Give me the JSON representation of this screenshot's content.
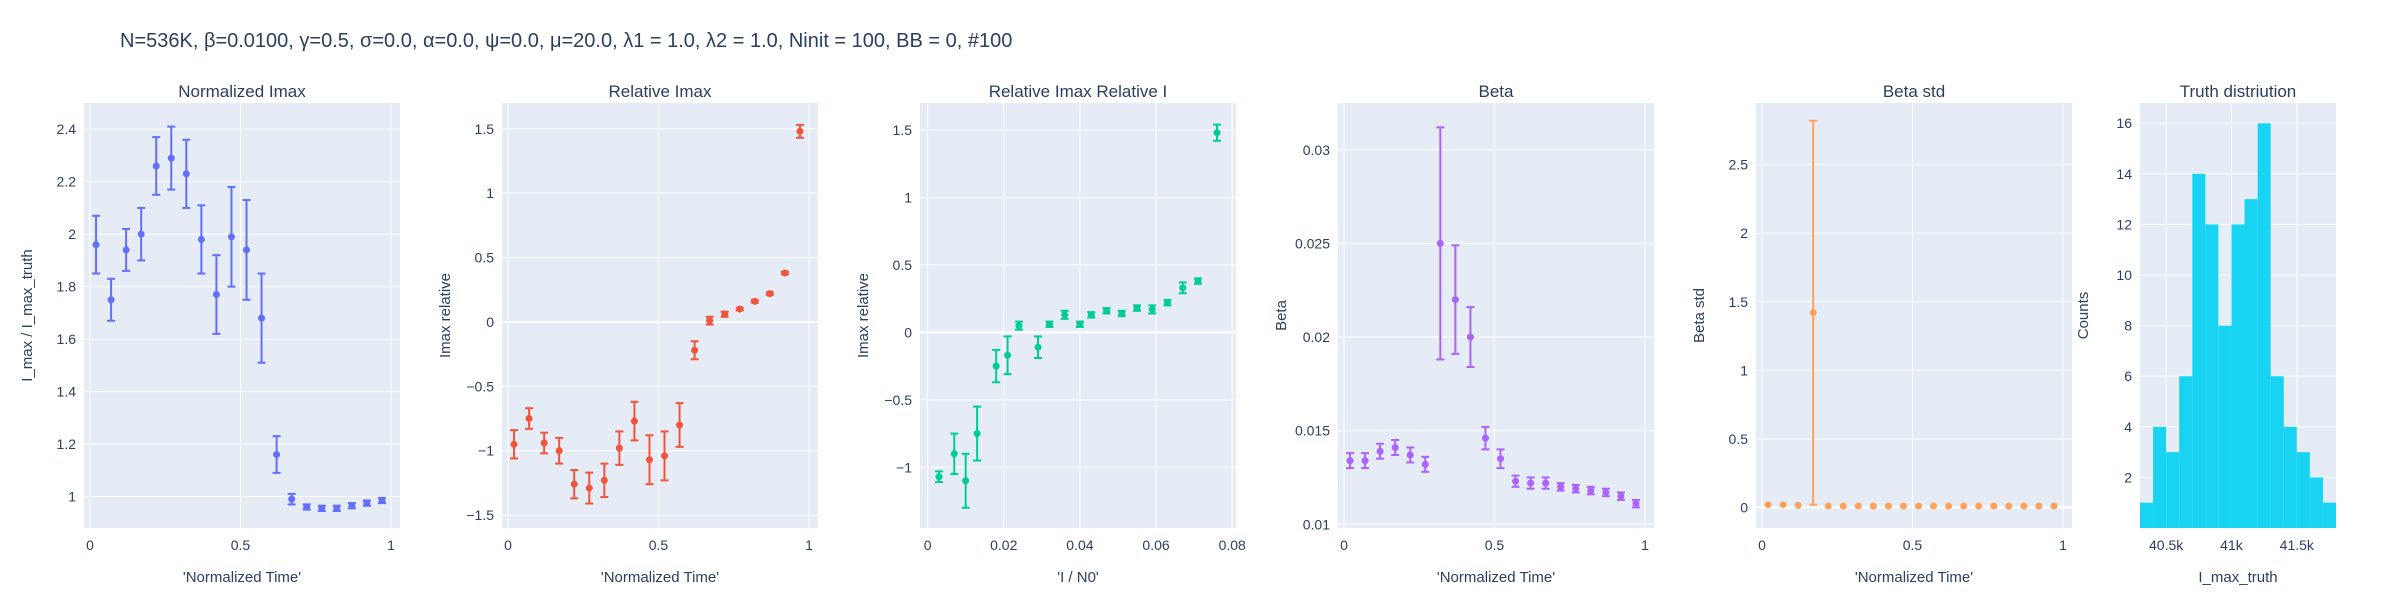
{
  "main_title": "N=536K, β=0.0100, γ=0.5, σ=0.0,  α=0.0, ψ=0.0, μ=20.0, λ1 = 1.0, λ2 = 1.0, Ninit = 100, BB = 0, #100",
  "chart_data": [
    {
      "type": "scatter",
      "title": "Normalized Imax",
      "xlabel": "'Normalized Time'",
      "ylabel": "I_max / I_max_truth",
      "color": "#636efa",
      "xlim": [
        -0.02,
        1.03
      ],
      "ylim": [
        0.88,
        2.5
      ],
      "xticks": [
        0,
        0.5,
        1
      ],
      "xtick_labels": [
        "0",
        "0.5",
        "1"
      ],
      "yticks": [
        1,
        1.2,
        1.4,
        1.6,
        1.8,
        2,
        2.2,
        2.4
      ],
      "ytick_labels": [
        "1",
        "1.2",
        "1.4",
        "1.6",
        "1.8",
        "2",
        "2.2",
        "2.4"
      ],
      "points": [
        {
          "x": 0.02,
          "y": 1.96,
          "err": 0.11
        },
        {
          "x": 0.07,
          "y": 1.75,
          "err": 0.08
        },
        {
          "x": 0.12,
          "y": 1.94,
          "err": 0.08
        },
        {
          "x": 0.17,
          "y": 2.0,
          "err": 0.1
        },
        {
          "x": 0.22,
          "y": 2.26,
          "err": 0.11
        },
        {
          "x": 0.27,
          "y": 2.29,
          "err": 0.12
        },
        {
          "x": 0.32,
          "y": 2.23,
          "err": 0.13
        },
        {
          "x": 0.37,
          "y": 1.98,
          "err": 0.13
        },
        {
          "x": 0.42,
          "y": 1.77,
          "err": 0.15
        },
        {
          "x": 0.47,
          "y": 1.99,
          "err": 0.19
        },
        {
          "x": 0.52,
          "y": 1.94,
          "err": 0.19
        },
        {
          "x": 0.57,
          "y": 1.68,
          "err": 0.17
        },
        {
          "x": 0.62,
          "y": 1.16,
          "err": 0.07
        },
        {
          "x": 0.67,
          "y": 0.99,
          "err": 0.02
        },
        {
          "x": 0.72,
          "y": 0.96,
          "err": 0.01
        },
        {
          "x": 0.77,
          "y": 0.955,
          "err": 0.01
        },
        {
          "x": 0.82,
          "y": 0.955,
          "err": 0.01
        },
        {
          "x": 0.87,
          "y": 0.965,
          "err": 0.01
        },
        {
          "x": 0.92,
          "y": 0.975,
          "err": 0.01
        },
        {
          "x": 0.97,
          "y": 0.985,
          "err": 0.01
        }
      ]
    },
    {
      "type": "scatter",
      "title": "Relative Imax",
      "xlabel": "'Normalized Time'",
      "ylabel": "Imax relative",
      "color": "#ef553b",
      "xlim": [
        -0.02,
        1.03
      ],
      "ylim": [
        -1.6,
        1.7
      ],
      "xticks": [
        0,
        0.5,
        1
      ],
      "xtick_labels": [
        "0",
        "0.5",
        "1"
      ],
      "yticks": [
        -1.5,
        -1,
        -0.5,
        0,
        0.5,
        1,
        1.5
      ],
      "ytick_labels": [
        "−1.5",
        "−1",
        "−0.5",
        "0",
        "0.5",
        "1",
        "1.5"
      ],
      "points": [
        {
          "x": 0.02,
          "y": -0.95,
          "err": 0.11
        },
        {
          "x": 0.07,
          "y": -0.75,
          "err": 0.08
        },
        {
          "x": 0.12,
          "y": -0.94,
          "err": 0.08
        },
        {
          "x": 0.17,
          "y": -1.0,
          "err": 0.1
        },
        {
          "x": 0.22,
          "y": -1.26,
          "err": 0.11
        },
        {
          "x": 0.27,
          "y": -1.29,
          "err": 0.12
        },
        {
          "x": 0.32,
          "y": -1.23,
          "err": 0.13
        },
        {
          "x": 0.37,
          "y": -0.98,
          "err": 0.13
        },
        {
          "x": 0.42,
          "y": -0.77,
          "err": 0.15
        },
        {
          "x": 0.47,
          "y": -1.07,
          "err": 0.19
        },
        {
          "x": 0.52,
          "y": -1.04,
          "err": 0.19
        },
        {
          "x": 0.57,
          "y": -0.8,
          "err": 0.17
        },
        {
          "x": 0.62,
          "y": -0.22,
          "err": 0.07
        },
        {
          "x": 0.67,
          "y": 0.01,
          "err": 0.03
        },
        {
          "x": 0.72,
          "y": 0.06,
          "err": 0.02
        },
        {
          "x": 0.77,
          "y": 0.1,
          "err": 0.01
        },
        {
          "x": 0.82,
          "y": 0.16,
          "err": 0.01
        },
        {
          "x": 0.87,
          "y": 0.22,
          "err": 0.01
        },
        {
          "x": 0.92,
          "y": 0.38,
          "err": 0.01
        },
        {
          "x": 0.97,
          "y": 1.48,
          "err": 0.05
        }
      ]
    },
    {
      "type": "scatter",
      "title": "Relative Imax Relative I",
      "xlabel": "'I / N0'",
      "ylabel": "Imax relative",
      "color": "#00cc96",
      "xlim": [
        -0.002,
        0.081
      ],
      "ylim": [
        -1.45,
        1.7
      ],
      "xticks": [
        0,
        0.02,
        0.04,
        0.06,
        0.08
      ],
      "xtick_labels": [
        "0",
        "0.02",
        "0.04",
        "0.06",
        "0.08"
      ],
      "yticks": [
        -1,
        -0.5,
        0,
        0.5,
        1,
        1.5
      ],
      "ytick_labels": [
        "−1",
        "−0.5",
        "0",
        "0.5",
        "1",
        "1.5"
      ],
      "points": [
        {
          "x": 0.003,
          "y": -1.07,
          "err": 0.04
        },
        {
          "x": 0.007,
          "y": -0.9,
          "err": 0.15
        },
        {
          "x": 0.01,
          "y": -1.1,
          "err": 0.2
        },
        {
          "x": 0.013,
          "y": -0.75,
          "err": 0.2
        },
        {
          "x": 0.018,
          "y": -0.25,
          "err": 0.12
        },
        {
          "x": 0.021,
          "y": -0.17,
          "err": 0.14
        },
        {
          "x": 0.024,
          "y": 0.05,
          "err": 0.03
        },
        {
          "x": 0.029,
          "y": -0.11,
          "err": 0.08
        },
        {
          "x": 0.032,
          "y": 0.06,
          "err": 0.02
        },
        {
          "x": 0.036,
          "y": 0.13,
          "err": 0.03
        },
        {
          "x": 0.04,
          "y": 0.06,
          "err": 0.02
        },
        {
          "x": 0.043,
          "y": 0.13,
          "err": 0.02
        },
        {
          "x": 0.047,
          "y": 0.16,
          "err": 0.02
        },
        {
          "x": 0.051,
          "y": 0.14,
          "err": 0.02
        },
        {
          "x": 0.055,
          "y": 0.18,
          "err": 0.02
        },
        {
          "x": 0.059,
          "y": 0.17,
          "err": 0.03
        },
        {
          "x": 0.063,
          "y": 0.22,
          "err": 0.02
        },
        {
          "x": 0.067,
          "y": 0.33,
          "err": 0.04
        },
        {
          "x": 0.071,
          "y": 0.38,
          "err": 0.02
        },
        {
          "x": 0.076,
          "y": 1.48,
          "err": 0.06
        }
      ]
    },
    {
      "type": "scatter",
      "title": "Beta",
      "xlabel": "'Normalized Time'",
      "ylabel": "Beta",
      "color": "#ab63fa",
      "xlim": [
        -0.02,
        1.03
      ],
      "ylim": [
        0.0098,
        0.0325
      ],
      "xticks": [
        0,
        0.5,
        1
      ],
      "xtick_labels": [
        "0",
        "0.5",
        "1"
      ],
      "yticks": [
        0.01,
        0.015,
        0.02,
        0.025,
        0.03
      ],
      "ytick_labels": [
        "0.01",
        "0.015",
        "0.02",
        "0.025",
        "0.03"
      ],
      "points": [
        {
          "x": 0.02,
          "y": 0.0134,
          "err": 0.0004
        },
        {
          "x": 0.07,
          "y": 0.0134,
          "err": 0.0004
        },
        {
          "x": 0.12,
          "y": 0.0139,
          "err": 0.0004
        },
        {
          "x": 0.17,
          "y": 0.0141,
          "err": 0.0004
        },
        {
          "x": 0.22,
          "y": 0.0137,
          "err": 0.0004
        },
        {
          "x": 0.27,
          "y": 0.0132,
          "err": 0.0004
        },
        {
          "x": 0.32,
          "y": 0.025,
          "err": 0.0062
        },
        {
          "x": 0.37,
          "y": 0.022,
          "err": 0.0029
        },
        {
          "x": 0.42,
          "y": 0.02,
          "err": 0.0016
        },
        {
          "x": 0.47,
          "y": 0.0146,
          "err": 0.0006
        },
        {
          "x": 0.52,
          "y": 0.0135,
          "err": 0.0005
        },
        {
          "x": 0.57,
          "y": 0.0123,
          "err": 0.0003
        },
        {
          "x": 0.62,
          "y": 0.0122,
          "err": 0.0003
        },
        {
          "x": 0.67,
          "y": 0.0122,
          "err": 0.0003
        },
        {
          "x": 0.72,
          "y": 0.012,
          "err": 0.0002
        },
        {
          "x": 0.77,
          "y": 0.0119,
          "err": 0.0002
        },
        {
          "x": 0.82,
          "y": 0.0118,
          "err": 0.0002
        },
        {
          "x": 0.87,
          "y": 0.0117,
          "err": 0.0002
        },
        {
          "x": 0.92,
          "y": 0.0115,
          "err": 0.0002
        },
        {
          "x": 0.97,
          "y": 0.0111,
          "err": 0.0002
        }
      ]
    },
    {
      "type": "scatter",
      "title": "Beta std",
      "xlabel": "'Normalized Time'",
      "ylabel": "Beta std",
      "color": "#ffa15a",
      "xlim": [
        -0.02,
        1.03
      ],
      "ylim": [
        -0.15,
        2.95
      ],
      "xticks": [
        0,
        0.5,
        1
      ],
      "xtick_labels": [
        "0",
        "0.5",
        "1"
      ],
      "yticks": [
        0,
        0.5,
        1,
        1.5,
        2,
        2.5
      ],
      "ytick_labels": [
        "0",
        "0.5",
        "1",
        "1.5",
        "2",
        "2.5"
      ],
      "points": [
        {
          "x": 0.02,
          "y": 0.02,
          "err": 0.0
        },
        {
          "x": 0.07,
          "y": 0.02,
          "err": 0.0
        },
        {
          "x": 0.12,
          "y": 0.015,
          "err": 0.0
        },
        {
          "x": 0.17,
          "y": 1.42,
          "err": 1.4
        },
        {
          "x": 0.22,
          "y": 0.01,
          "err": 0.0
        },
        {
          "x": 0.27,
          "y": 0.01,
          "err": 0.0
        },
        {
          "x": 0.32,
          "y": 0.01,
          "err": 0.0
        },
        {
          "x": 0.37,
          "y": 0.01,
          "err": 0.0
        },
        {
          "x": 0.42,
          "y": 0.01,
          "err": 0.0
        },
        {
          "x": 0.47,
          "y": 0.01,
          "err": 0.0
        },
        {
          "x": 0.52,
          "y": 0.01,
          "err": 0.0
        },
        {
          "x": 0.57,
          "y": 0.01,
          "err": 0.0
        },
        {
          "x": 0.62,
          "y": 0.01,
          "err": 0.0
        },
        {
          "x": 0.67,
          "y": 0.01,
          "err": 0.0
        },
        {
          "x": 0.72,
          "y": 0.01,
          "err": 0.0
        },
        {
          "x": 0.77,
          "y": 0.01,
          "err": 0.0
        },
        {
          "x": 0.82,
          "y": 0.01,
          "err": 0.0
        },
        {
          "x": 0.87,
          "y": 0.01,
          "err": 0.0
        },
        {
          "x": 0.92,
          "y": 0.01,
          "err": 0.0
        },
        {
          "x": 0.97,
          "y": 0.01,
          "err": 0.0
        }
      ]
    },
    {
      "type": "histogram",
      "title": "Truth distriution",
      "xlabel": "I_max_truth",
      "ylabel": "Counts",
      "color": "#19d3f3",
      "xlim": [
        40300,
        41800
      ],
      "ylim": [
        0,
        16.8
      ],
      "xticks": [
        40500,
        41000,
        41500
      ],
      "xtick_labels": [
        "40.5k",
        "41k",
        "41.5k"
      ],
      "yticks": [
        2,
        4,
        6,
        8,
        10,
        12,
        14,
        16
      ],
      "ytick_labels": [
        "2",
        "4",
        "6",
        "8",
        "10",
        "12",
        "14",
        "16"
      ],
      "bin_start": 40300,
      "bin_width": 100,
      "counts": [
        1,
        4,
        3,
        6,
        14,
        12,
        8,
        12,
        13,
        16,
        6,
        4,
        3,
        2,
        1
      ]
    }
  ]
}
